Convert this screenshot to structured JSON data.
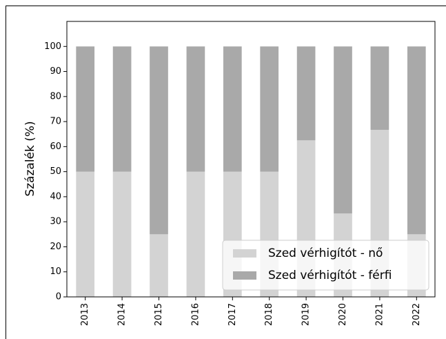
{
  "chart_data": {
    "type": "stacked_bar",
    "ylabel": "Százalék (%)",
    "categories": [
      "2013",
      "2014",
      "2015",
      "2016",
      "2017",
      "2018",
      "2019",
      "2020",
      "2021",
      "2022"
    ],
    "series": [
      {
        "name": "Szed vérhigítót - nő",
        "color": "#d3d3d3",
        "values": [
          50,
          50,
          25,
          50,
          50,
          50,
          62.5,
          33.3,
          66.7,
          25
        ]
      },
      {
        "name": "Szed vérhigítót - férfi",
        "color": "#a9a9a9",
        "values": [
          50,
          50,
          75,
          50,
          50,
          50,
          37.5,
          66.7,
          33.3,
          75
        ]
      }
    ],
    "ylim": [
      0,
      110
    ],
    "yticks": [
      0,
      10,
      20,
      30,
      40,
      50,
      60,
      70,
      80,
      90,
      100
    ],
    "legend": "lower right"
  }
}
